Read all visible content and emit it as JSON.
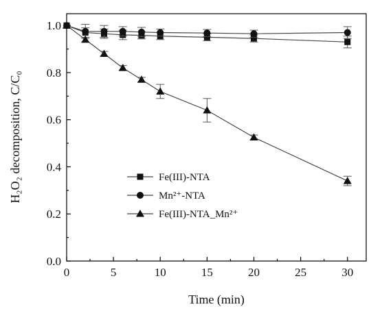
{
  "chart_data": {
    "type": "line",
    "xlabel": "Time (min)",
    "ylabel": "H₂O₂ decomposition, C/C₀",
    "xlim": [
      0,
      32
    ],
    "ylim": [
      0,
      1.05
    ],
    "x_ticks": [
      0,
      5,
      10,
      15,
      20,
      25,
      30
    ],
    "x_tick_labels": [
      "0",
      "5",
      "10",
      "15",
      "20",
      "25",
      "30"
    ],
    "y_ticks": [
      0,
      0.2,
      0.4,
      0.6,
      0.8,
      1.0
    ],
    "y_tick_labels": [
      "0.0",
      "0.2",
      "0.4",
      "0.6",
      "0.8",
      "1.0"
    ],
    "legend_position": "lower-left",
    "series": [
      {
        "name": "Fe(III)-NTA",
        "marker": "square",
        "color": "#111111",
        "x": [
          0,
          2,
          4,
          6,
          8,
          10,
          15,
          20,
          30
        ],
        "y": [
          1.0,
          0.97,
          0.965,
          0.96,
          0.958,
          0.955,
          0.95,
          0.945,
          0.93
        ],
        "err": [
          0,
          0.02,
          0.02,
          0.02,
          0.015,
          0.015,
          0.015,
          0.015,
          0.025
        ]
      },
      {
        "name": "Mn²⁺-NTA",
        "marker": "circle",
        "color": "#111111",
        "x": [
          0,
          2,
          4,
          6,
          8,
          10,
          15,
          20,
          30
        ],
        "y": [
          1.0,
          0.975,
          0.975,
          0.975,
          0.972,
          0.97,
          0.968,
          0.965,
          0.97
        ],
        "err": [
          0,
          0.03,
          0.025,
          0.02,
          0.02,
          0.015,
          0.015,
          0.015,
          0.025
        ]
      },
      {
        "name": "Fe(III)-NTA_Mn²⁺",
        "marker": "triangle",
        "color": "#111111",
        "x": [
          0,
          2,
          4,
          6,
          8,
          10,
          15,
          20,
          30
        ],
        "y": [
          1.0,
          0.94,
          0.88,
          0.82,
          0.77,
          0.72,
          0.64,
          0.525,
          0.34
        ],
        "err": [
          0,
          0.01,
          0.01,
          0.01,
          0.01,
          0.03,
          0.05,
          0.01,
          0.02
        ]
      }
    ]
  }
}
